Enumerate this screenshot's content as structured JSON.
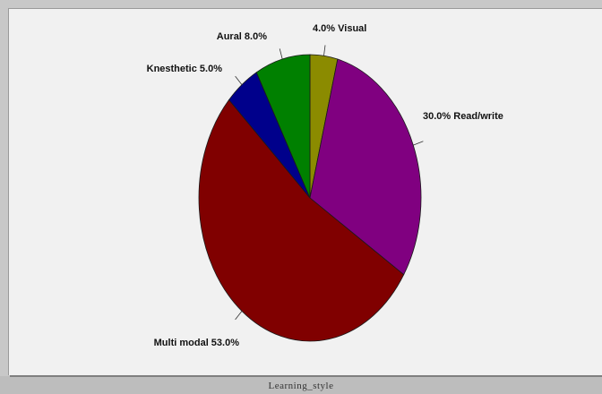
{
  "caption": "Learning_style",
  "chart_data": {
    "type": "pie",
    "title": "",
    "start_angle_deg": 0,
    "direction": "clockwise",
    "slices": [
      {
        "label": "Visual",
        "value": 4.0,
        "text": "4.0% Visual",
        "color": "#8b8b00"
      },
      {
        "label": "Read/write",
        "value": 30.0,
        "text": "30.0% Read/write",
        "color": "#800080"
      },
      {
        "label": "Multi modal",
        "value": 53.0,
        "text": "Multi modal 53.0%",
        "color": "#800000"
      },
      {
        "label": "Knesthetic",
        "value": 5.0,
        "text": "Knesthetic 5.0%",
        "color": "#00008b"
      },
      {
        "label": "Aural",
        "value": 8.0,
        "text": "Aural 8.0%",
        "color": "#008000"
      }
    ]
  }
}
